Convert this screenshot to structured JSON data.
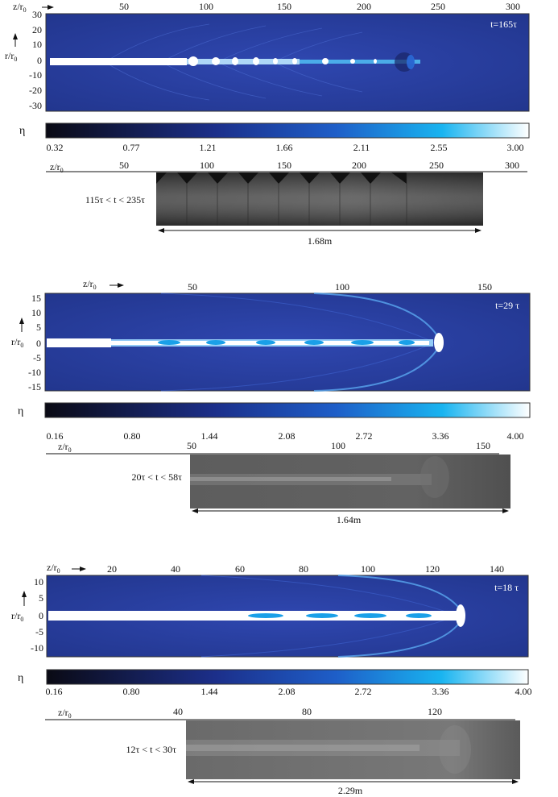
{
  "panels": [
    {
      "id": "p1",
      "time_label": "t=165τ",
      "z_axis_label": "z/r",
      "z_axis_sub": "0",
      "r_axis_label": "r/r",
      "r_axis_sub": "0",
      "z_ticks": [
        "50",
        "100",
        "150",
        "200",
        "250",
        "300"
      ],
      "r_ticks": [
        "30",
        "20",
        "10",
        "0",
        "-10",
        "-20",
        "-30"
      ],
      "colorbar_symbol": "η",
      "colorbar_ticks": [
        "0.32",
        "0.77",
        "1.21",
        "1.66",
        "2.11",
        "2.55",
        "3.00"
      ],
      "photo_z_label": "z/r",
      "photo_z_sub": "0",
      "photo_z_ticks": [
        "50",
        "100",
        "150",
        "200",
        "250",
        "300"
      ],
      "photo_time_label": "115τ < t < 235τ",
      "scale_label": "1.68m"
    },
    {
      "id": "p2",
      "time_label": "t=29 τ",
      "z_axis_label": "z/r",
      "z_axis_sub": "0",
      "r_axis_label": "r/r",
      "r_axis_sub": "0",
      "z_ticks": [
        "50",
        "100",
        "150"
      ],
      "r_ticks": [
        "15",
        "10",
        "5",
        "0",
        "-5",
        "-10",
        "-15"
      ],
      "colorbar_symbol": "η",
      "colorbar_ticks": [
        "0.16",
        "0.80",
        "1.44",
        "2.08",
        "2.72",
        "3.36",
        "4.00"
      ],
      "photo_z_label": "z/r",
      "photo_z_sub": "0",
      "photo_z_ticks": [
        "50",
        "100",
        "150"
      ],
      "photo_time_label": "20τ < t < 58τ",
      "scale_label": "1.64m"
    },
    {
      "id": "p3",
      "time_label": "t=18 τ",
      "z_axis_label": "z/r",
      "z_axis_sub": "0",
      "r_axis_label": "r/r",
      "r_axis_sub": "0",
      "z_ticks": [
        "20",
        "40",
        "60",
        "80",
        "100",
        "120",
        "140"
      ],
      "r_ticks": [
        "10",
        "5",
        "0",
        "-5",
        "-10"
      ],
      "colorbar_symbol": "η",
      "colorbar_ticks": [
        "0.16",
        "0.80",
        "1.44",
        "2.08",
        "2.72",
        "3.36",
        "4.00"
      ],
      "photo_z_label": "z/r",
      "photo_z_sub": "0",
      "photo_z_ticks": [
        "40",
        "80",
        "120"
      ],
      "photo_time_label": "12τ < t < 30τ",
      "scale_label": "2.29m"
    }
  ],
  "colors": {
    "background_blue": "#2a3fa0",
    "jet_core": "#ffffff",
    "jet_cyan": "#1aa0e8",
    "cb_dark": "#0a0a14",
    "cb_mid": "#1e5ec8",
    "cb_cyan": "#19b4f0",
    "cb_light": "#ffffff"
  }
}
